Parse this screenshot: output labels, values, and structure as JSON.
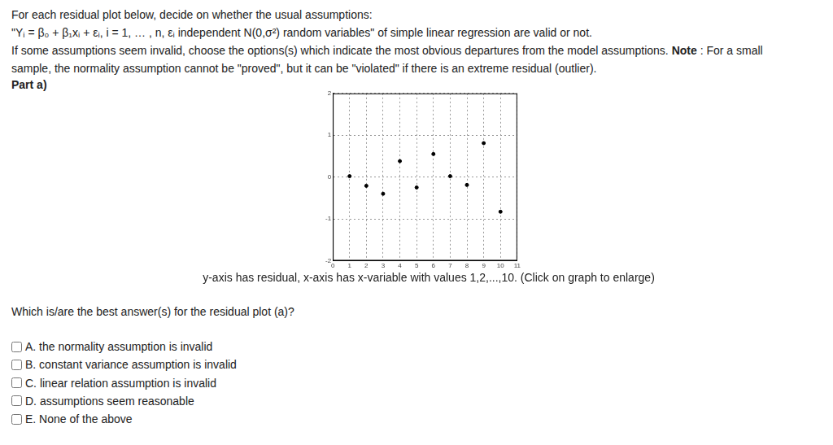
{
  "question": {
    "intro": "For each residual plot below, decide on whether the usual assumptions:",
    "model": "\"Yᵢ = β₀ + β₁xᵢ + εᵢ, i = 1, … , n, εᵢ independent N(0,σ²) random variables\" of simple linear regression are valid or not.",
    "instruction": [
      "If some assumptions seem invalid, choose the options(s) which indicate the most obvious departures from the model assumptions. ",
      "Note",
      " : For a small"
    ],
    "instruction2": "sample, the normality assumption cannot be \"proved\", but it can be \"violated\" if there is an extreme residual (outlier).",
    "part": "Part a)",
    "caption": "y-axis has residual, x-axis has x-variable with values 1,2,...,10. (Click on graph to enlarge)",
    "prompt": "Which is/are the best answer(s) for the residual plot (a)?",
    "options": [
      "A. the normality assumption is invalid",
      "B. constant variance assumption is invalid",
      "C. linear relation assumption is invalid",
      "D. assumptions seem reasonable",
      "E. None of the above"
    ]
  },
  "chart_data": {
    "type": "scatter",
    "x": [
      1,
      2,
      3,
      4,
      5,
      6,
      7,
      8,
      9,
      10
    ],
    "values": [
      0.02,
      -0.21,
      -0.4,
      0.38,
      -0.25,
      0.55,
      0.02,
      -0.19,
      0.81,
      -0.83
    ],
    "color": "#000000",
    "xlim": [
      0,
      11
    ],
    "ylim": [
      -2,
      2
    ],
    "xticks": [
      0,
      1,
      2,
      3,
      4,
      5,
      6,
      7,
      8,
      9,
      10,
      11
    ],
    "yticks": [
      -2,
      -1,
      0,
      1,
      2
    ],
    "grid": true
  }
}
